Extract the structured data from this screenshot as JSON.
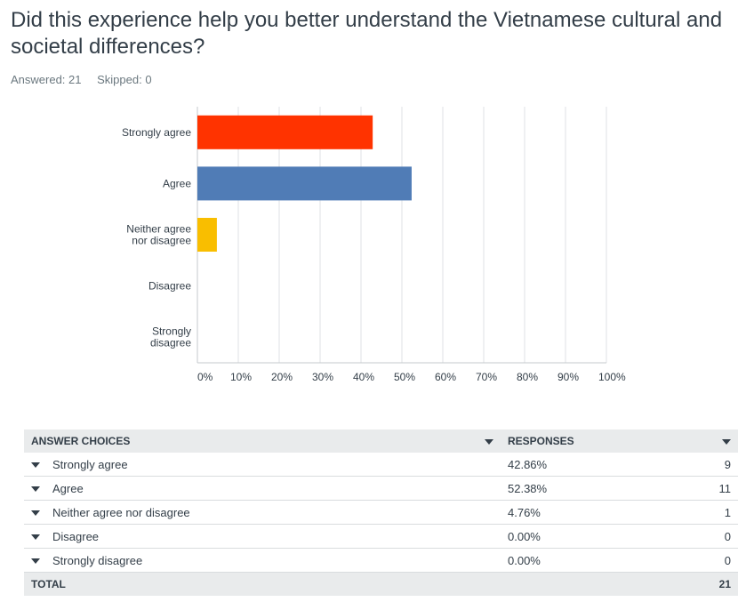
{
  "question": {
    "title": "Did this experience help you better understand the Vietnamese cultural and societal differences?",
    "answered_label": "Answered: 21",
    "skipped_label": "Skipped: 0"
  },
  "chart_data": {
    "type": "bar",
    "orientation": "horizontal",
    "categories": [
      [
        "Strongly agree"
      ],
      [
        "Agree"
      ],
      [
        "Neither agree",
        "nor disagree"
      ],
      [
        "Disagree"
      ],
      [
        "Strongly",
        "disagree"
      ]
    ],
    "values": [
      42.86,
      52.38,
      4.76,
      0,
      0
    ],
    "colors": [
      "#ff3300",
      "#507cb6",
      "#f9be00",
      "#6bc8cd",
      "#8ea85b"
    ],
    "xlim": [
      0,
      100
    ],
    "xticks": [
      "0%",
      "10%",
      "20%",
      "30%",
      "40%",
      "50%",
      "60%",
      "70%",
      "80%",
      "90%",
      "100%"
    ],
    "grid": true
  },
  "table": {
    "headers": {
      "choices": "ANSWER CHOICES",
      "responses": "RESPONSES"
    },
    "rows": [
      {
        "choice": "Strongly agree",
        "pct": "42.86%",
        "count": "9"
      },
      {
        "choice": "Agree",
        "pct": "52.38%",
        "count": "11"
      },
      {
        "choice": "Neither agree nor disagree",
        "pct": "4.76%",
        "count": "1"
      },
      {
        "choice": "Disagree",
        "pct": "0.00%",
        "count": "0"
      },
      {
        "choice": "Strongly disagree",
        "pct": "0.00%",
        "count": "0"
      }
    ],
    "total_label": "TOTAL",
    "total_count": "21"
  }
}
